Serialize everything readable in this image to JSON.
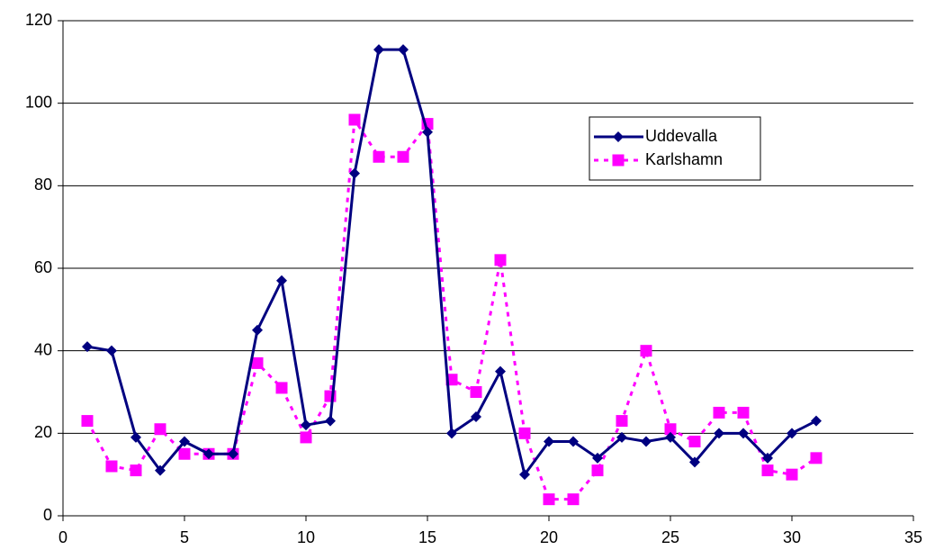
{
  "chart_data": {
    "type": "line",
    "x": [
      1,
      2,
      3,
      4,
      5,
      6,
      7,
      8,
      9,
      10,
      11,
      12,
      13,
      14,
      15,
      16,
      17,
      18,
      19,
      20,
      21,
      22,
      23,
      24,
      25,
      26,
      27,
      28,
      29,
      30,
      31
    ],
    "series": [
      {
        "name": "Uddevalla",
        "color": "#000080",
        "marker": "diamond",
        "line": "solid",
        "values": [
          41,
          40,
          19,
          11,
          18,
          15,
          15,
          45,
          57,
          22,
          23,
          83,
          113,
          113,
          93,
          20,
          24,
          35,
          10,
          18,
          18,
          14,
          19,
          18,
          19,
          13,
          20,
          20,
          14,
          20,
          23
        ]
      },
      {
        "name": "Karlshamn",
        "color": "#ff00ff",
        "marker": "square",
        "line": "dotted",
        "values": [
          23,
          12,
          11,
          21,
          15,
          15,
          15,
          37,
          31,
          19,
          29,
          96,
          87,
          87,
          95,
          33,
          30,
          62,
          20,
          4,
          4,
          11,
          23,
          40,
          21,
          18,
          25,
          25,
          11,
          10,
          14
        ]
      }
    ],
    "xlim": [
      0,
      35
    ],
    "xticks": [
      0,
      5,
      10,
      15,
      20,
      25,
      30,
      35
    ],
    "ylim": [
      0,
      120
    ],
    "yticks": [
      0,
      20,
      40,
      60,
      80,
      100,
      120
    ],
    "grid": true,
    "legend": "upper right"
  }
}
